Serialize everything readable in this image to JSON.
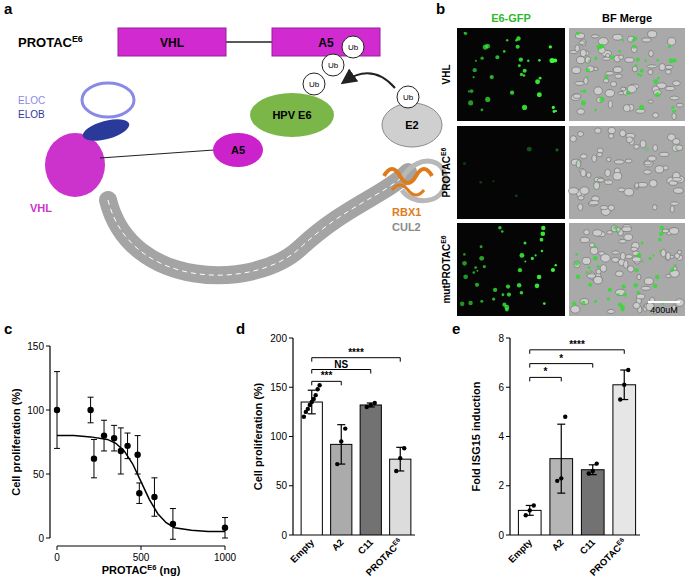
{
  "panel_labels": [
    "a",
    "b",
    "c",
    "d",
    "e"
  ],
  "diagram": {
    "title": "PROTACE6",
    "domains": [
      "VHL",
      "A5"
    ],
    "proteins": {
      "eloc": "ELOC",
      "elob": "ELOB",
      "vhl": "VHL",
      "a5": "A5",
      "e6": "HPV E6",
      "e2": "E2",
      "rbx1": "RBX1",
      "cul2": "CUL2"
    },
    "ubiquitin": "Ub"
  },
  "images": {
    "columns": [
      "E6-GFP",
      "BF Merge"
    ],
    "rows": [
      "VHL",
      "PROTACE6",
      "mutPROTACE6"
    ],
    "scale_bar": "400uM"
  },
  "chart_data": [
    {
      "type": "scatter",
      "x_label": "PROTACE6 (ng)",
      "y_label": "Cell proliferation (%)",
      "xlim": [
        0,
        1000
      ],
      "xticks": [
        0,
        500,
        1000
      ],
      "ylim": [
        0,
        150
      ],
      "yticks": [
        0,
        50,
        100,
        150
      ],
      "series": [
        {
          "type": "scatter",
          "marker": "circle",
          "color": "#000000",
          "x": [
            0,
            200,
            220,
            280,
            340,
            380,
            420,
            480,
            490,
            580,
            690,
            1000
          ],
          "values": [
            100,
            100,
            62,
            80,
            78,
            68,
            72,
            65,
            35,
            32,
            11,
            8
          ],
          "errors": [
            30,
            10,
            15,
            12,
            10,
            18,
            10,
            15,
            8,
            15,
            12,
            8
          ]
        },
        {
          "type": "line",
          "line_style": "solid",
          "color": "#000000",
          "x": [
            0,
            100,
            200,
            300,
            350,
            400,
            450,
            500,
            550,
            600,
            650,
            700,
            800,
            900,
            1000
          ],
          "values": [
            80,
            80,
            79,
            77,
            74,
            68,
            58,
            44,
            30,
            19,
            12,
            8,
            6,
            5,
            5
          ]
        }
      ]
    },
    {
      "type": "bar",
      "y_label": "Cell proliferation (%)",
      "categories": [
        "Empty",
        "A2",
        "C11",
        "PROTACE6"
      ],
      "values": [
        135,
        92,
        132,
        77
      ],
      "errors": [
        12,
        20,
        2,
        12
      ],
      "colors": [
        "#ffffff",
        "#ababab",
        "#727272",
        "#dcdcdc"
      ],
      "points": [
        [
          120,
          125,
          128,
          132,
          135,
          138,
          142,
          148,
          152
        ],
        [
          72,
          95,
          108
        ],
        [
          130,
          132,
          134
        ],
        [
          65,
          78,
          88
        ]
      ],
      "ylim": [
        0,
        200
      ],
      "yticks": [
        0,
        50,
        100,
        150,
        200
      ],
      "annotations": [
        "***",
        "NS",
        "****"
      ]
    },
    {
      "type": "bar",
      "y_label": "Fold ISG15 induction",
      "categories": [
        "Empty",
        "A2",
        "C11",
        "PROTACE6"
      ],
      "values": [
        1,
        3.1,
        2.65,
        6.1
      ],
      "errors": [
        0.2,
        1.4,
        0.2,
        0.6
      ],
      "colors": [
        "#ffffff",
        "#b5b5b5",
        "#727272",
        "#e6e6e6"
      ],
      "points": [
        [
          0.8,
          1.0,
          1.2
        ],
        [
          2.2,
          2.3,
          4.8
        ],
        [
          2.5,
          2.6,
          2.9
        ],
        [
          5.5,
          6.1,
          6.7
        ]
      ],
      "ylim": [
        0,
        8
      ],
      "yticks": [
        0,
        2,
        4,
        6,
        8
      ],
      "annotations": [
        "*",
        "*",
        "****"
      ]
    }
  ]
}
